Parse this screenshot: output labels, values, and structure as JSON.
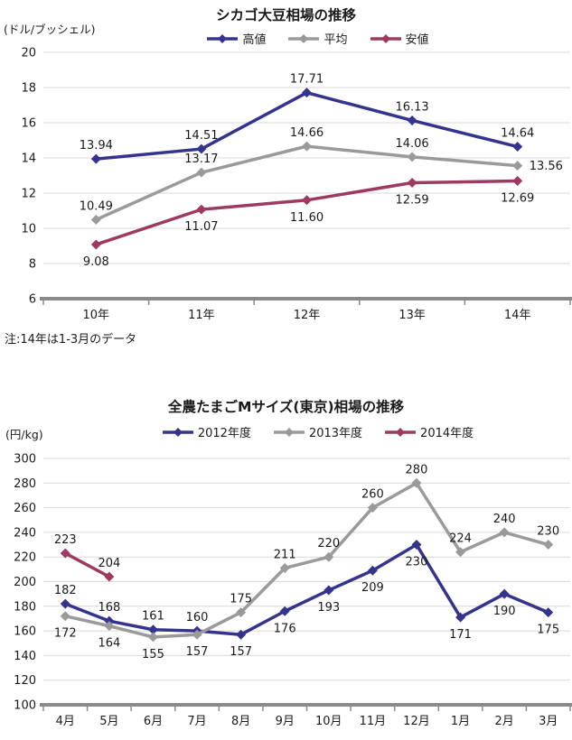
{
  "colors": {
    "navy": "#34348F",
    "gray": "#9A9A9A",
    "crimson": "#9E3A62",
    "gridline": "#D9D9D9",
    "axis": "#8A8A8A",
    "text": "#1A1A1A"
  },
  "chart_data": [
    {
      "type": "line",
      "title": "シカゴ大豆相場の推移",
      "unit_label": "(ドル/ブッシェル)",
      "note": "注:14年は1-3月のデータ",
      "categories": [
        "10年",
        "11年",
        "12年",
        "13年",
        "14年"
      ],
      "ylim": [
        6,
        20
      ],
      "ytick_step": 2,
      "grid": true,
      "legend_position": "top",
      "series": [
        {
          "name": "高値",
          "color": "#34348F",
          "values": [
            13.94,
            14.51,
            17.71,
            16.13,
            14.64
          ],
          "labels": [
            "13.94",
            "14.51",
            "17.71",
            "16.13",
            "14.64"
          ],
          "label_side": [
            "above",
            "above",
            "above",
            "above",
            "above"
          ]
        },
        {
          "name": "平均",
          "color": "#9A9A9A",
          "values": [
            10.49,
            13.17,
            14.66,
            14.06,
            13.56
          ],
          "labels": [
            "10.49",
            "13.17",
            "14.66",
            "14.06",
            "13.56"
          ],
          "label_side": [
            "above",
            "above",
            "above",
            "above",
            "right"
          ]
        },
        {
          "name": "安値",
          "color": "#9E3A62",
          "values": [
            9.08,
            11.07,
            11.6,
            12.59,
            12.69
          ],
          "labels": [
            "9.08",
            "11.07",
            "11.60",
            "12.59",
            "12.69"
          ],
          "label_side": [
            "below",
            "below",
            "below",
            "below",
            "below"
          ]
        }
      ]
    },
    {
      "type": "line",
      "title": "全農たまごMサイズ(東京)相場の推移",
      "unit_label": "(円/kg)",
      "note": "",
      "categories": [
        "4月",
        "5月",
        "6月",
        "7月",
        "8月",
        "9月",
        "10月",
        "11月",
        "12月",
        "1月",
        "2月",
        "3月"
      ],
      "ylim": [
        100,
        300
      ],
      "ytick_step": 20,
      "grid": true,
      "legend_position": "top",
      "series": [
        {
          "name": "2012年度",
          "color": "#34348F",
          "values": [
            182,
            168,
            161,
            160,
            157,
            176,
            193,
            209,
            230,
            171,
            190,
            175
          ],
          "labels": [
            "182",
            "168",
            "161",
            "160",
            "157",
            "176",
            "193",
            "209",
            "230",
            "171",
            "190",
            "175"
          ],
          "label_side": [
            "above",
            "above",
            "above",
            "above",
            "below",
            "below",
            "below",
            "below",
            "below",
            "below",
            "below",
            "below"
          ]
        },
        {
          "name": "2013年度",
          "color": "#9A9A9A",
          "values": [
            172,
            164,
            155,
            157,
            175,
            211,
            220,
            260,
            280,
            224,
            240,
            230
          ],
          "labels": [
            "172",
            "164",
            "155",
            "157",
            "175",
            "211",
            "220",
            "260",
            "280",
            "224",
            "240",
            "230"
          ],
          "label_side": [
            "below",
            "below",
            "below",
            "below",
            "above",
            "above",
            "above",
            "above",
            "above",
            "above",
            "above",
            "above"
          ]
        },
        {
          "name": "2014年度",
          "color": "#9E3A62",
          "values": [
            223,
            204
          ],
          "labels": [
            "223",
            "204"
          ],
          "label_side": [
            "above",
            "above"
          ]
        }
      ]
    }
  ]
}
